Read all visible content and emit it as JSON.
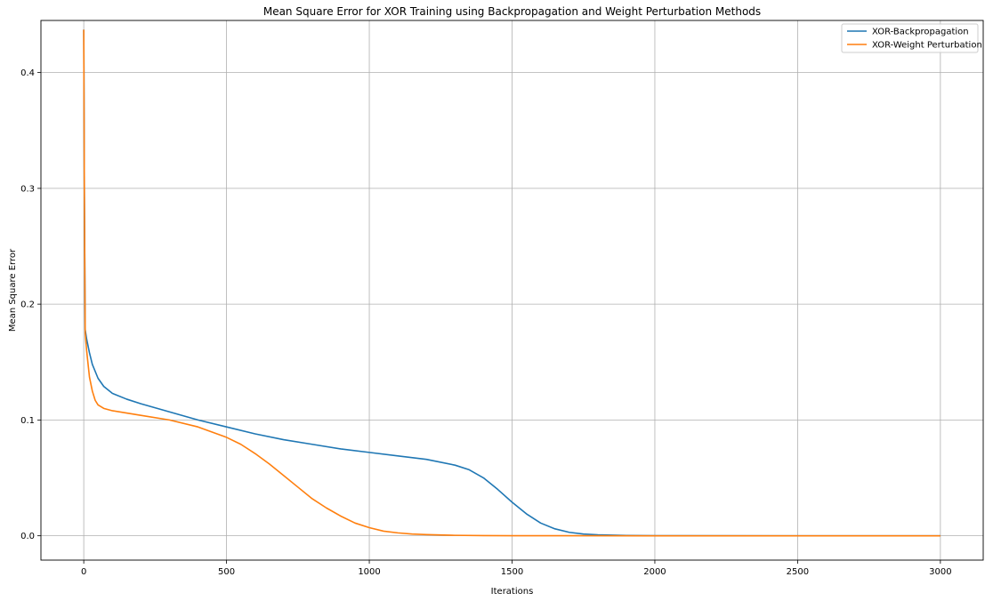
{
  "chart_data": {
    "type": "line",
    "title": "Mean Square Error for XOR Training using Backpropagation and Weight Perturbation Methods",
    "xlabel": "Iterations",
    "ylabel": "Mean Square Error",
    "xlim": [
      -150,
      3150
    ],
    "ylim": [
      -0.021,
      0.445
    ],
    "xticks": [
      0,
      500,
      1000,
      1500,
      2000,
      2500,
      3000
    ],
    "yticks": [
      0.0,
      0.1,
      0.2,
      0.3,
      0.4
    ],
    "grid": true,
    "legend_position": "top-right",
    "series": [
      {
        "name": "XOR-Backpropagation",
        "color": "#1f77b4",
        "x": [
          0,
          2,
          5,
          10,
          20,
          30,
          50,
          70,
          100,
          150,
          200,
          300,
          400,
          500,
          600,
          700,
          800,
          900,
          1000,
          1100,
          1200,
          1300,
          1350,
          1400,
          1450,
          1500,
          1550,
          1600,
          1650,
          1700,
          1750,
          1800,
          1900,
          2000,
          2500,
          3000
        ],
        "y": [
          0.437,
          0.3,
          0.178,
          0.17,
          0.158,
          0.148,
          0.136,
          0.129,
          0.123,
          0.118,
          0.114,
          0.107,
          0.1,
          0.094,
          0.088,
          0.083,
          0.079,
          0.075,
          0.072,
          0.069,
          0.066,
          0.061,
          0.057,
          0.05,
          0.04,
          0.029,
          0.019,
          0.011,
          0.006,
          0.003,
          0.0015,
          0.0008,
          0.0003,
          0.0001,
          0.0,
          0.0
        ]
      },
      {
        "name": "XOR-Weight Perturbation",
        "color": "#ff7f0e",
        "x": [
          0,
          2,
          5,
          10,
          20,
          30,
          40,
          50,
          70,
          100,
          150,
          200,
          300,
          400,
          500,
          550,
          600,
          650,
          700,
          750,
          800,
          850,
          900,
          950,
          1000,
          1050,
          1100,
          1150,
          1200,
          1300,
          1400,
          1500,
          2000,
          2500,
          3000
        ],
        "y": [
          0.437,
          0.3,
          0.175,
          0.16,
          0.137,
          0.125,
          0.117,
          0.113,
          0.11,
          0.108,
          0.106,
          0.104,
          0.1,
          0.094,
          0.085,
          0.079,
          0.071,
          0.062,
          0.052,
          0.042,
          0.032,
          0.024,
          0.017,
          0.011,
          0.007,
          0.004,
          0.0025,
          0.0015,
          0.001,
          0.0004,
          0.0002,
          0.0001,
          0.0,
          0.0,
          0.0
        ]
      }
    ]
  }
}
